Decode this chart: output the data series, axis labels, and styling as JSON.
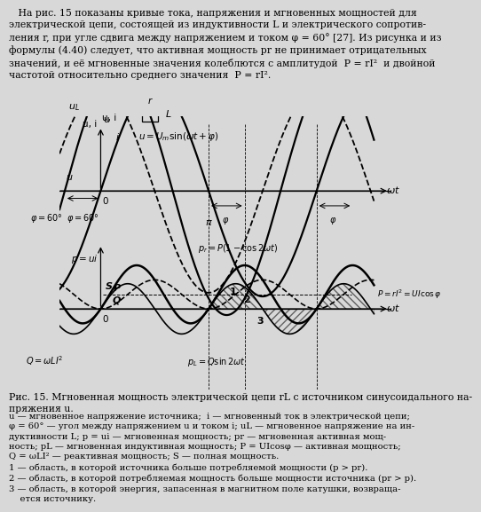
{
  "phi_deg": 60,
  "bg_color": "#d8d8d8",
  "top_text": "   На рис. 15 показаны кривые тока, напряжения и мгновенных мощностей для\nэлектрической цепи, состоящей из индуктивности L и электрического сопротив-\nления r, при угле сдвига между напряжением и током φ = 60° [27]. Из рисунка и из\nформулы (4.40) следует, что активная мощность pr не принимает отрицательных\nзначений, и её мгновенные значения колеблются с амплитудой  P = rI²  и двойной\nчастотой относительно среднего значения  P = rI².",
  "fig_caption": "Рис. 15. Мгновенная мощность электрической цепи rL с источником синусоидального на-\nпряжения u.",
  "legend_text": "u — мгновенное напряжение источника;  i — мгновенный ток в электрической цепи;\nφ = 60° — угол между напряжением u и током i; uL — мгновенное напряжение на ин-\nдуктивности L; p = ui — мгновенная мощность; pr — мгновенная активная мощ-\nность; pL — мгновенная индуктивная мощность; P = UIcosφ — активная мощность;\nQ = ωLI² — реактивная мощность; S — полная мощность.\n1 — область, в которой источника больше потребляемой мощности (p > pr).\n2 — область, в которой потребляемая мощность больше мощности источника (pr > p).\n3 — область, в которой энергия, запасенная в магнитном поле катушки, возвраща-\n    ется источнику."
}
